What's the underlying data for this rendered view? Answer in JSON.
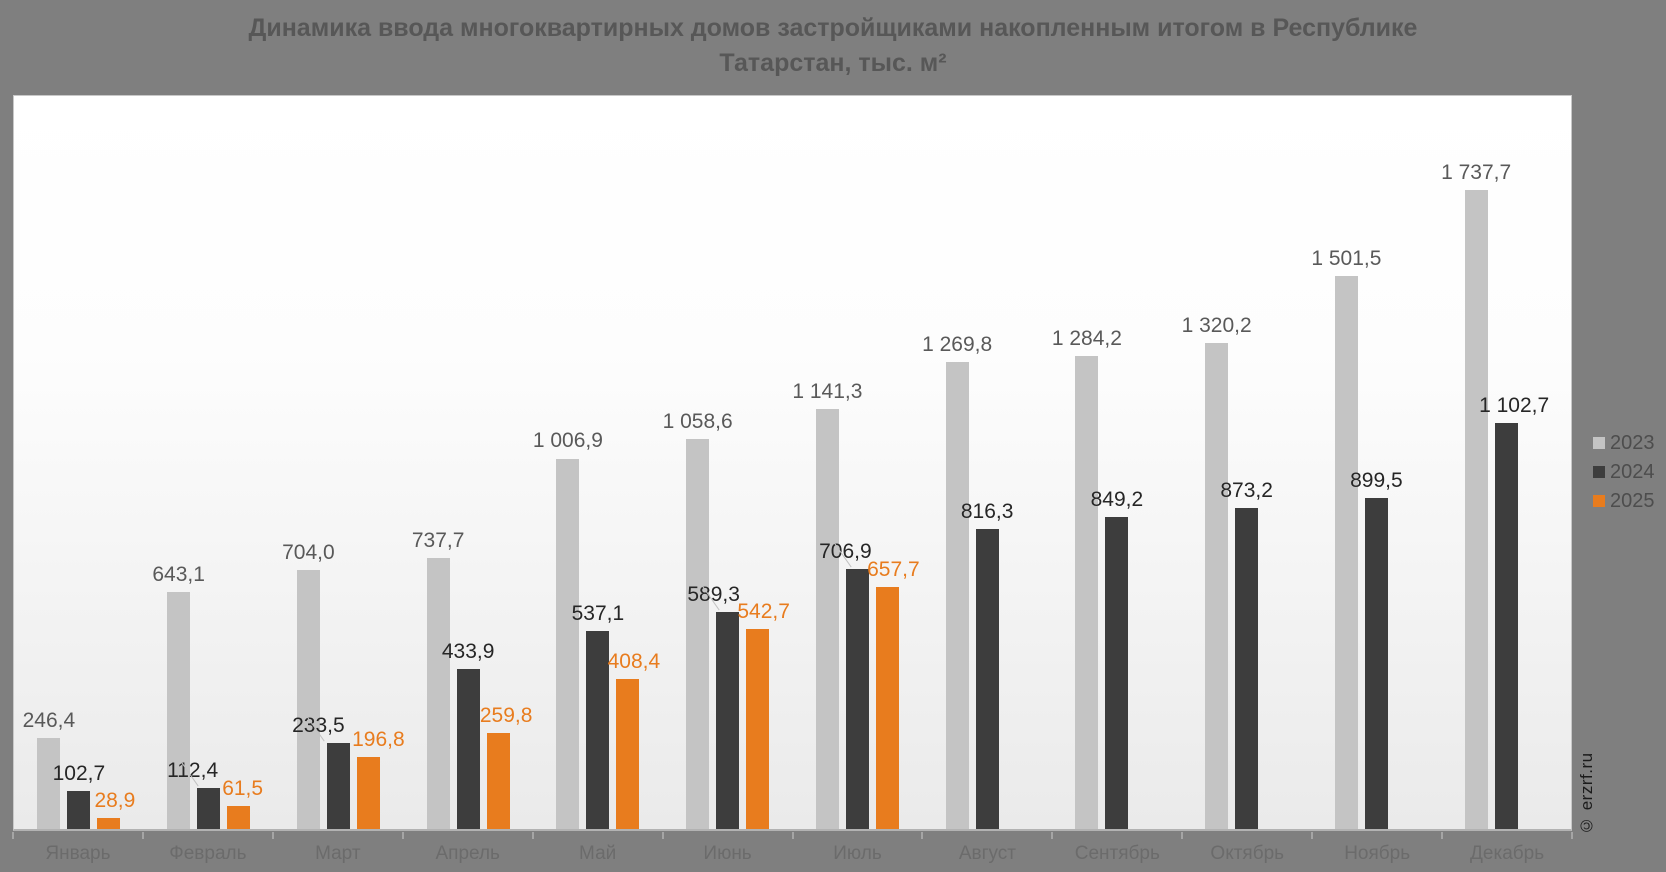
{
  "header": {
    "line1": "Динамика ввода многоквартирных домов застройщиками накопленным итогом в Республике",
    "line2": "Татарстан, тыс. м²"
  },
  "watermark": "© erzrf.ru",
  "colors": {
    "page_background": "#7f7f7f",
    "plot_top": "#ffffff",
    "plot_bottom": "#eaeaea",
    "axis_line": "#b2b2b2",
    "tick": "#a5a5a5",
    "month_label": "#6b6b6b",
    "title_text": "#575757",
    "legend_text": "#4d4d4d"
  },
  "legend": {
    "position": "right",
    "items": [
      {
        "label": "2023",
        "color": "#c4c4c4"
      },
      {
        "label": "2024",
        "color": "#3d3d3d"
      },
      {
        "label": "2025",
        "color": "#e87c1e"
      }
    ]
  },
  "chart_data": {
    "type": "bar",
    "title": "Динамика ввода многоквартирных домов застройщиками накопленным итогом в Республике Татарстан, тыс. м²",
    "xlabel": "",
    "ylabel": "тыс. м²",
    "ylim": [
      0,
      2000
    ],
    "grid": false,
    "legend_position": "right",
    "categories": [
      "Январь",
      "Февраль",
      "Март",
      "Апрель",
      "Май",
      "Июнь",
      "Июль",
      "Август",
      "Сентябрь",
      "Октябрь",
      "Ноябрь",
      "Декабрь"
    ],
    "series": [
      {
        "name": "2023",
        "color": "#c4c4c4",
        "label_color": "#595959",
        "values": [
          246.4,
          643.1,
          704.0,
          737.7,
          1006.9,
          1058.6,
          1141.3,
          1269.8,
          1284.2,
          1320.2,
          1501.5,
          1737.7
        ],
        "labels": [
          "246,4",
          "643,1",
          "704,0",
          "737,7",
          "1 006,9",
          "1 058,6",
          "1 141,3",
          "1 269,8",
          "1 284,2",
          "1 320,2",
          "1 501,5",
          "1 737,7"
        ],
        "label_dx": [
          0,
          0,
          0,
          0,
          0,
          0,
          0,
          0,
          0,
          0,
          0,
          0
        ]
      },
      {
        "name": "2024",
        "color": "#3d3d3d",
        "label_color": "#262626",
        "values": [
          102.7,
          112.4,
          233.5,
          433.9,
          537.1,
          589.3,
          706.9,
          816.3,
          849.2,
          873.2,
          899.5,
          1102.7
        ],
        "labels": [
          "102,7",
          "112,4",
          "233,5",
          "433,9",
          "537,1",
          "589,3",
          "706,9",
          "816,3",
          "849,2",
          "873,2",
          "899,5",
          "1 102,7"
        ],
        "label_dx": [
          0,
          -16,
          -20,
          0,
          0,
          -14,
          -12,
          0,
          0,
          0,
          0,
          8
        ]
      },
      {
        "name": "2025",
        "color": "#e87c1e",
        "label_color": "#e87c1e",
        "values": [
          28.9,
          61.5,
          196.8,
          259.8,
          408.4,
          542.7,
          657.7,
          null,
          null,
          null,
          null,
          null
        ],
        "labels": [
          "28,9",
          "61,5",
          "196,8",
          "259,8",
          "408,4",
          "542,7",
          "657,7",
          null,
          null,
          null,
          null,
          null
        ],
        "label_dx": [
          6,
          4,
          10,
          8,
          6,
          6,
          6,
          0,
          0,
          0,
          0,
          0
        ]
      }
    ]
  }
}
